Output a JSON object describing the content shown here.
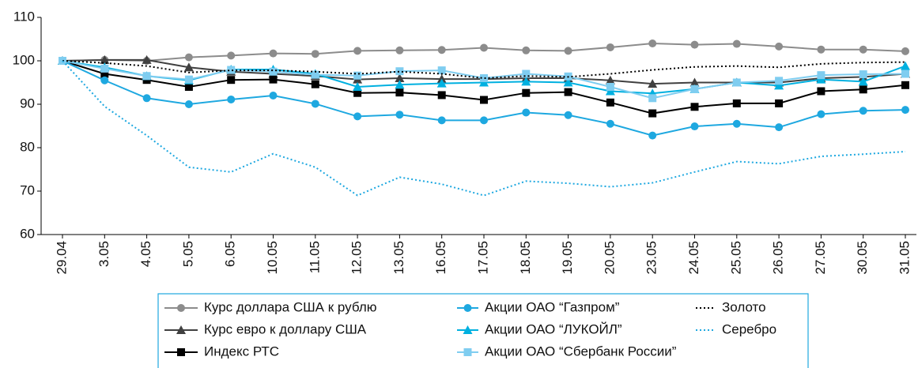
{
  "chart_data": {
    "type": "line",
    "categories": [
      "29.04",
      "3.05",
      "4.05",
      "5.05",
      "6.05",
      "10.05",
      "11.05",
      "12.05",
      "13.05",
      "16.05",
      "17.05",
      "18.05",
      "19.05",
      "20.05",
      "23.05",
      "24.05",
      "25.05",
      "26.05",
      "27.05",
      "30.05",
      "31.05"
    ],
    "ylim": [
      60,
      110
    ],
    "yticks": [
      60,
      70,
      80,
      90,
      100,
      110
    ],
    "grid": false,
    "series": [
      {
        "name": "Курс доллара США к рублю",
        "color": "#8c8c8c",
        "marker": "circle",
        "dash": false,
        "values": [
          100,
          100.2,
          100,
          100.8,
          101.2,
          101.7,
          101.6,
          102.3,
          102.4,
          102.5,
          103,
          102.4,
          102.3,
          103.1,
          104,
          103.7,
          103.9,
          103.3,
          102.6,
          102.6,
          102.2
        ]
      },
      {
        "name": "Курс евро к доллару США",
        "color": "#404040",
        "marker": "triangle",
        "dash": false,
        "values": [
          100,
          100.2,
          100.2,
          98.5,
          97.5,
          97,
          96.5,
          95.7,
          96,
          95.8,
          95.8,
          96,
          96,
          95.5,
          94.7,
          95,
          95,
          95,
          96,
          96.3,
          97
        ]
      },
      {
        "name": "Индекс РТС",
        "color": "#000000",
        "marker": "square",
        "dash": false,
        "values": [
          100,
          97,
          95.6,
          94,
          95.6,
          95.7,
          94.6,
          92.6,
          92.7,
          92.1,
          91,
          92.6,
          92.8,
          90.4,
          87.9,
          89.4,
          90.2,
          90.2,
          93,
          93.4,
          94.4
        ]
      },
      {
        "name": "Акции ОАО “Газпром”",
        "color": "#1ea8e0",
        "marker": "circle",
        "dash": false,
        "values": [
          100,
          95.5,
          91.4,
          90,
          91.1,
          92,
          90.1,
          87.2,
          87.6,
          86.3,
          86.3,
          88.1,
          87.5,
          85.5,
          82.8,
          84.9,
          85.5,
          84.7,
          87.7,
          88.5,
          88.7
        ]
      },
      {
        "name": "Акции ОАО “ЛУКОЙЛ”",
        "color": "#00b0e0",
        "marker": "triangle",
        "dash": false,
        "values": [
          100,
          98.5,
          96.5,
          95.5,
          98,
          98,
          97,
          94,
          94.5,
          94.8,
          95,
          95.2,
          95,
          93,
          92.5,
          93.5,
          95,
          94.3,
          95.7,
          95.2,
          98.8
        ]
      },
      {
        "name": "Акции ОАО “Сбербанк России”",
        "color": "#7fcdf0",
        "marker": "square",
        "dash": false,
        "values": [
          100,
          98.2,
          96.5,
          95.7,
          97.9,
          97.5,
          96.8,
          96.6,
          97.6,
          97.8,
          96,
          97,
          96.4,
          94,
          91.4,
          93.5,
          95,
          95.4,
          96.7,
          96.9,
          97
        ]
      },
      {
        "name": "Золото",
        "color": "#000000",
        "marker": null,
        "dash": true,
        "values": [
          100,
          99.5,
          98.8,
          97.3,
          97.8,
          97.8,
          97.5,
          97,
          97.5,
          97,
          96,
          96.5,
          96.3,
          97,
          97.9,
          98.6,
          98.8,
          98.5,
          99.3,
          99.6,
          99.7
        ]
      },
      {
        "name": "Серебро",
        "color": "#1ea8e0",
        "marker": null,
        "dash": true,
        "values": [
          100,
          89.5,
          82.8,
          75.5,
          74.4,
          78.6,
          75.5,
          69,
          73.2,
          71.6,
          69,
          72.3,
          71.8,
          71,
          71.9,
          74.4,
          76.8,
          76.3,
          78,
          78.5,
          79.1
        ]
      }
    ]
  }
}
